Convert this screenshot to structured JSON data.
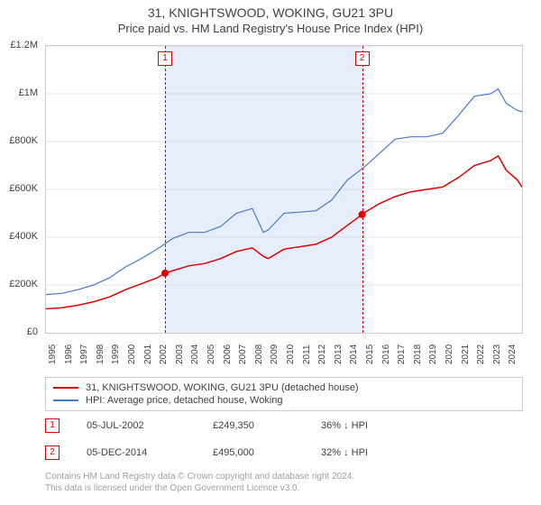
{
  "title": "31, KNIGHTSWOOD, WOKING, GU21 3PU",
  "subtitle": "Price paid vs. HM Land Registry's House Price Index (HPI)",
  "chart": {
    "type": "line",
    "xlim": [
      1995,
      2025
    ],
    "ylim": [
      0,
      1200000
    ],
    "ytick_step": 200000,
    "y_labels": [
      "£0",
      "£200K",
      "£400K",
      "£600K",
      "£800K",
      "£1M",
      "£1.2M"
    ],
    "x_years": [
      1995,
      1996,
      1997,
      1998,
      1999,
      2000,
      2001,
      2002,
      2003,
      2004,
      2005,
      2006,
      2007,
      2008,
      2009,
      2010,
      2011,
      2012,
      2013,
      2014,
      2015,
      2016,
      2017,
      2018,
      2019,
      2020,
      2021,
      2022,
      2023,
      2024
    ],
    "background": "#ffffff",
    "grid_color": "#cccccc",
    "shade_color": "#e6eefc",
    "shade_range": [
      2002.5,
      2014.92
    ],
    "series": [
      {
        "name": "property",
        "label": "31, KNIGHTSWOOD, WOKING, GU21 3PU (detached house)",
        "color": "#e10000",
        "width": 1.5,
        "data": [
          [
            1995,
            100000
          ],
          [
            1996,
            105000
          ],
          [
            1997,
            115000
          ],
          [
            1998,
            130000
          ],
          [
            1999,
            150000
          ],
          [
            2000,
            180000
          ],
          [
            2001,
            205000
          ],
          [
            2002,
            230000
          ],
          [
            2002.5,
            249350
          ],
          [
            2003,
            260000
          ],
          [
            2004,
            280000
          ],
          [
            2005,
            290000
          ],
          [
            2006,
            310000
          ],
          [
            2007,
            340000
          ],
          [
            2008,
            355000
          ],
          [
            2008.7,
            320000
          ],
          [
            2009,
            310000
          ],
          [
            2010,
            350000
          ],
          [
            2011,
            360000
          ],
          [
            2012,
            370000
          ],
          [
            2013,
            400000
          ],
          [
            2014,
            450000
          ],
          [
            2014.92,
            495000
          ],
          [
            2015,
            500000
          ],
          [
            2016,
            540000
          ],
          [
            2017,
            570000
          ],
          [
            2018,
            590000
          ],
          [
            2019,
            600000
          ],
          [
            2020,
            610000
          ],
          [
            2021,
            650000
          ],
          [
            2022,
            700000
          ],
          [
            2023,
            720000
          ],
          [
            2023.5,
            740000
          ],
          [
            2024,
            680000
          ],
          [
            2024.7,
            640000
          ],
          [
            2025,
            610000
          ]
        ]
      },
      {
        "name": "hpi",
        "label": "HPI: Average price, detached house, Woking",
        "color": "#4a7ac7",
        "width": 1.2,
        "data": [
          [
            1995,
            160000
          ],
          [
            1996,
            165000
          ],
          [
            1997,
            180000
          ],
          [
            1998,
            200000
          ],
          [
            1999,
            230000
          ],
          [
            2000,
            275000
          ],
          [
            2001,
            310000
          ],
          [
            2002,
            350000
          ],
          [
            2003,
            395000
          ],
          [
            2004,
            420000
          ],
          [
            2005,
            420000
          ],
          [
            2006,
            445000
          ],
          [
            2007,
            500000
          ],
          [
            2008,
            520000
          ],
          [
            2008.7,
            420000
          ],
          [
            2009,
            430000
          ],
          [
            2010,
            500000
          ],
          [
            2011,
            505000
          ],
          [
            2012,
            510000
          ],
          [
            2013,
            555000
          ],
          [
            2014,
            640000
          ],
          [
            2015,
            690000
          ],
          [
            2016,
            750000
          ],
          [
            2017,
            810000
          ],
          [
            2018,
            820000
          ],
          [
            2019,
            820000
          ],
          [
            2020,
            835000
          ],
          [
            2021,
            910000
          ],
          [
            2022,
            990000
          ],
          [
            2023,
            1000000
          ],
          [
            2023.5,
            1020000
          ],
          [
            2024,
            960000
          ],
          [
            2024.7,
            930000
          ],
          [
            2025,
            925000
          ]
        ]
      }
    ],
    "events": [
      {
        "id": "1",
        "x": 2002.5,
        "color": "#e10000",
        "marker_y": 249350
      },
      {
        "id": "2",
        "x": 2014.92,
        "color": "#e10000",
        "marker_y": 495000
      }
    ]
  },
  "legend": {
    "items": [
      {
        "color": "#e10000",
        "label": "31, KNIGHTSWOOD, WOKING, GU21 3PU (detached house)"
      },
      {
        "color": "#4a7ac7",
        "label": "HPI: Average price, detached house, Woking"
      }
    ]
  },
  "sales": [
    {
      "id": "1",
      "color": "#e10000",
      "date": "05-JUL-2002",
      "price": "£249,350",
      "diff": "36% ↓ HPI"
    },
    {
      "id": "2",
      "color": "#e10000",
      "date": "05-DEC-2014",
      "price": "£495,000",
      "diff": "32% ↓ HPI"
    }
  ],
  "footer": {
    "line1": "Contains HM Land Registry data © Crown copyright and database right 2024.",
    "line2": "This data is licensed under the Open Government Licence v3.0."
  }
}
